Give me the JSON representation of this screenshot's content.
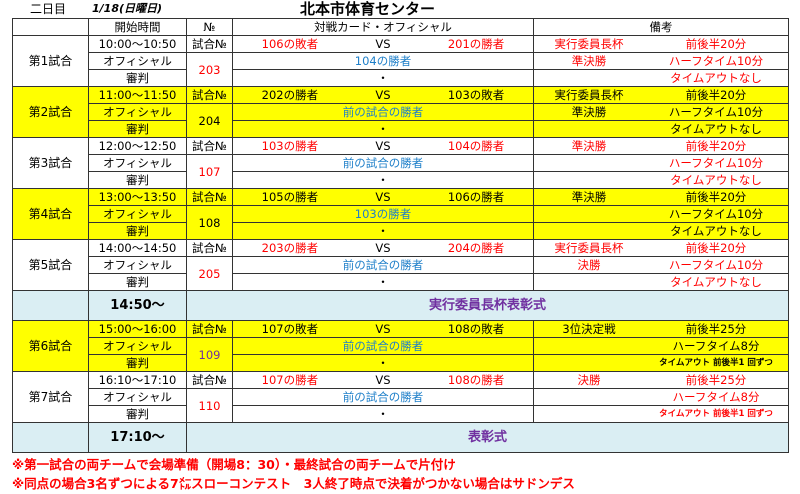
{
  "header": {
    "day": "二日目",
    "date": "1/18(日曜日)",
    "title": "北本市体育センター"
  },
  "columns": {
    "time": "開始時間",
    "no": "№",
    "card": "対戦カード・オフィシャル",
    "remarks": "備考"
  },
  "labels": {
    "game_no": "試合№",
    "official": "オフィシャル",
    "referee": "審判",
    "vs": "VS",
    "dot": "・"
  },
  "games": [
    {
      "label": "第1試合",
      "time": "10:00〜10:50",
      "no": "203",
      "no_color": "red",
      "team1": "106の敗者",
      "team2": "201の勝者",
      "color": "red",
      "official": "104の勝者",
      "cup": "実行委員長杯",
      "halves": "前後半20分",
      "stage": "準決勝",
      "halftime": "ハーフタイム10分",
      "timeout": "タイムアウトなし",
      "highlight": false
    },
    {
      "label": "第2試合",
      "time": "11:00〜11:50",
      "no": "204",
      "no_color": "blk",
      "team1": "202の勝者",
      "team2": "103の敗者",
      "color": "blk",
      "official": "前の試合の勝者",
      "cup": "実行委員長杯",
      "halves": "前後半20分",
      "stage": "準決勝",
      "halftime": "ハーフタイム10分",
      "timeout": "タイムアウトなし",
      "highlight": true
    },
    {
      "label": "第3試合",
      "time": "12:00〜12:50",
      "no": "107",
      "no_color": "red",
      "team1": "103の勝者",
      "team2": "104の勝者",
      "color": "red",
      "official": "前の試合の勝者",
      "cup": "準決勝",
      "halves": "前後半20分",
      "stage": "",
      "halftime": "ハーフタイム10分",
      "timeout": "タイムアウトなし",
      "highlight": false
    },
    {
      "label": "第4試合",
      "time": "13:00〜13:50",
      "no": "108",
      "no_color": "blk",
      "team1": "105の勝者",
      "team2": "106の勝者",
      "color": "blk",
      "official": "103の勝者",
      "cup": "準決勝",
      "halves": "前後半20分",
      "stage": "",
      "halftime": "ハーフタイム10分",
      "timeout": "タイムアウトなし",
      "highlight": true
    },
    {
      "label": "第5試合",
      "time": "14:00〜14:50",
      "no": "205",
      "no_color": "red",
      "team1": "203の勝者",
      "team2": "204の勝者",
      "color": "red",
      "official": "前の試合の勝者",
      "cup": "実行委員長杯",
      "halves": "前後半20分",
      "stage": "決勝",
      "halftime": "ハーフタイム10分",
      "timeout": "タイムアウトなし",
      "highlight": false
    },
    {
      "label": "第6試合",
      "time": "15:00〜16:00",
      "no": "109",
      "no_color": "purp",
      "team1": "107の敗者",
      "team2": "108の敗者",
      "color": "blk",
      "official": "前の試合の勝者",
      "cup": "3位決定戦",
      "halves": "前後半25分",
      "stage": "",
      "halftime": "ハーフタイム8分",
      "timeout": "タイムアウト 前後半1 回ずつ",
      "highlight": true,
      "small_timeout": true
    },
    {
      "label": "第7試合",
      "time": "16:10〜17:10",
      "no": "110",
      "no_color": "red",
      "team1": "107の勝者",
      "team2": "108の勝者",
      "color": "red",
      "official": "前の試合の勝者",
      "cup": "決勝",
      "halves": "前後半25分",
      "stage": "",
      "halftime": "ハーフタイム8分",
      "timeout": "タイムアウト 前後半1 回ずつ",
      "highlight": false,
      "small_timeout": true
    }
  ],
  "ceremonies": [
    {
      "time": "14:50〜",
      "title": "実行委員長杯表彰式"
    },
    {
      "time": "17:10〜",
      "title": "表彰式"
    }
  ],
  "notes": [
    "※第一試合の両チームで会場準備（開場8：30）・最終試合の両チームで片付け",
    "※同点の場合3名ずつによる7㍍スローコンテスト　3人終了時点で決着がつかない場合はサドンデス"
  ],
  "colors": {
    "highlight": "#ffff00",
    "ceremony_bg": "#daeef3",
    "ceremony_text": "#7030a0",
    "official": "#1e7fc9",
    "red": "#ff0000"
  }
}
